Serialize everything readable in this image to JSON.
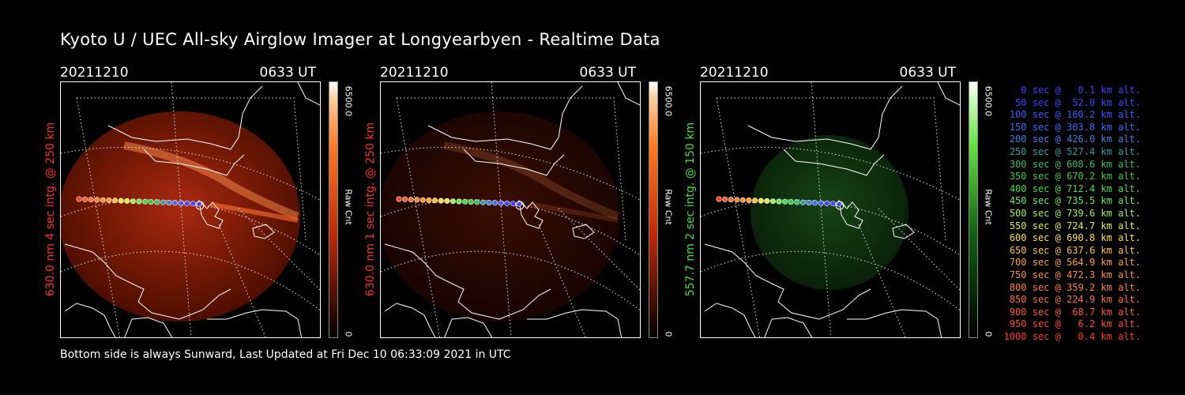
{
  "title": "Kyoto U / UEC All-sky Airglow Imager at Longyearbyen - Realtime Data",
  "footer": "Bottom side is always Sunward, Last Updated at Fri Dec 10 06:33:09 2021 in UTC",
  "colors": {
    "red_label": "#ff3020",
    "green_label": "#40e040"
  },
  "panels": [
    {
      "date": "20211210",
      "time": "0633 UT",
      "ylabel": "630.0 nm 4 sec intg. @ 250 km",
      "colorbar": {
        "max": "6500.0",
        "unit": "Raw Cnt",
        "min": "0",
        "scheme": "red"
      }
    },
    {
      "date": "20211210",
      "time": "0633 UT",
      "ylabel": "630.0 nm 1 sec intg. @ 250 km",
      "colorbar": {
        "max": "6500.0",
        "unit": "Raw Cnt",
        "min": "0",
        "scheme": "red"
      }
    },
    {
      "date": "20211210",
      "time": "0633 UT",
      "ylabel": "557.7 nm 2 sec intg. @ 150 km",
      "colorbar": {
        "max": "6500.0",
        "unit": "Raw Cnt",
        "min": "0",
        "scheme": "green"
      }
    }
  ],
  "legend": [
    {
      "text": "0 sec @   0.1 km alt.",
      "color": "#4040ff"
    },
    {
      "text": "50 sec @  52.0 km alt.",
      "color": "#4040ff"
    },
    {
      "text": "100 sec @ 160.2 km alt.",
      "color": "#3a5cff"
    },
    {
      "text": "150 sec @ 303.8 km alt.",
      "color": "#3a6cff"
    },
    {
      "text": "200 sec @ 426.0 km alt.",
      "color": "#3a84e0"
    },
    {
      "text": "250 sec @ 527.4 km alt.",
      "color": "#30a0a0"
    },
    {
      "text": "300 sec @ 608.6 km alt.",
      "color": "#30c060"
    },
    {
      "text": "350 sec @ 670.2 km alt.",
      "color": "#30d040"
    },
    {
      "text": "400 sec @ 712.4 km alt.",
      "color": "#40e040"
    },
    {
      "text": "450 sec @ 735.5 km alt.",
      "color": "#60f050"
    },
    {
      "text": "500 sec @ 739.6 km alt.",
      "color": "#a0f050"
    },
    {
      "text": "550 sec @ 724.7 km alt.",
      "color": "#e0f040"
    },
    {
      "text": "600 sec @ 690.8 km alt.",
      "color": "#ffe040"
    },
    {
      "text": "650 sec @ 637.6 km alt.",
      "color": "#ffc040"
    },
    {
      "text": "700 sec @ 564.9 km alt.",
      "color": "#ffa030"
    },
    {
      "text": "750 sec @ 472.3 km alt.",
      "color": "#ff9030"
    },
    {
      "text": "800 sec @ 359.2 km alt.",
      "color": "#ff8030"
    },
    {
      "text": "850 sec @ 224.9 km alt.",
      "color": "#ff7030"
    },
    {
      "text": "900 sec @  68.7 km alt.",
      "color": "#ff5a28"
    },
    {
      "text": "950 sec @   6.2 km alt.",
      "color": "#ff4a20"
    },
    {
      "text": "1000 sec @   0.4 km alt.",
      "color": "#ff3a18"
    }
  ]
}
